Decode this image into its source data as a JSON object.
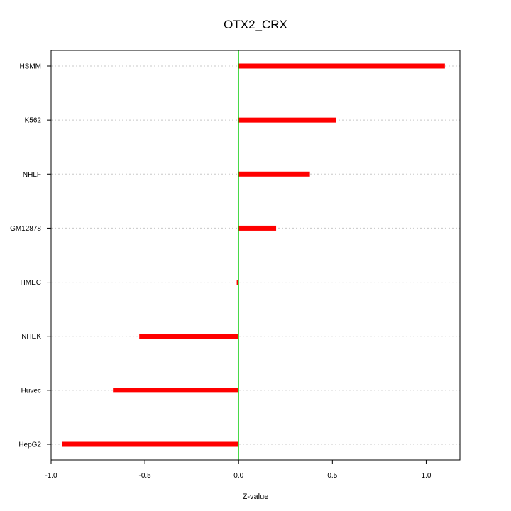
{
  "chart_data": {
    "type": "bar",
    "orientation": "horizontal",
    "title": "OTX2_CRX",
    "xlabel": "Z-value",
    "ylabel": "",
    "xlim": [
      -1.0,
      1.18
    ],
    "xticks": [
      -1.0,
      -0.5,
      0.0,
      0.5,
      1.0
    ],
    "xtick_labels": [
      "-1.0",
      "-0.5",
      "0.0",
      "0.5",
      "1.0"
    ],
    "categories": [
      "HSMM",
      "K562",
      "NHLF",
      "GM12878",
      "HMEC",
      "NHEK",
      "Huvec",
      "HepG2"
    ],
    "values": [
      1.1,
      0.52,
      0.38,
      0.2,
      -0.01,
      -0.53,
      -0.67,
      -0.94
    ],
    "grid": "horizontal-dotted",
    "bar_color": "#ff0000",
    "zero_line_color": "#00cc00"
  }
}
